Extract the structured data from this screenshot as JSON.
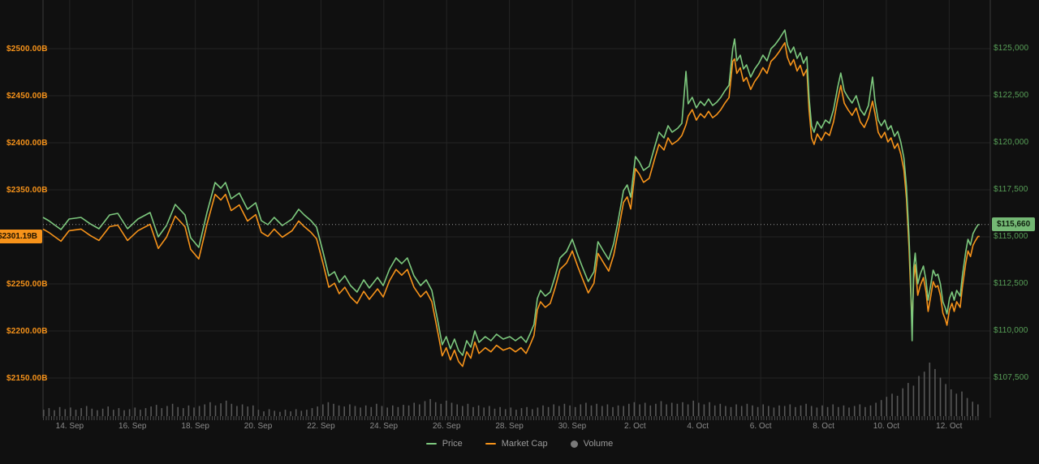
{
  "colors": {
    "background": "#101010",
    "grid": "#242424",
    "axis_line": "#3a3a3a",
    "price_line": "#7dc97e",
    "market_cap_line": "#f7931a",
    "volume_bar": "#585858",
    "muted_text": "#8c8c8c",
    "left_axis_text": "#f7931a",
    "right_axis_text": "#58a058",
    "price_badge_bg": "#74b874",
    "price_badge_text": "#0e1f0e",
    "market_cap_badge_bg": "#f7931a",
    "market_cap_badge_text": "#241500",
    "current_price_dotted_line": "#999999"
  },
  "legend": {
    "items": [
      {
        "label": "Price",
        "marker": "line",
        "color": "#7dc97e"
      },
      {
        "label": "Market Cap",
        "marker": "line",
        "color": "#f7931a"
      },
      {
        "label": "Volume",
        "marker": "dot",
        "color": "#7a7a7a"
      }
    ]
  },
  "chart_data": {
    "type": "line",
    "title": "",
    "legend_position": "bottom",
    "grid": true,
    "current": {
      "price": 115660,
      "price_label": "$115,660",
      "market_cap_b": 2301.19,
      "market_cap_label": "$2301.19B"
    },
    "price_axis": {
      "side": "right",
      "min": 105389,
      "max": 127586,
      "ticks": [
        {
          "v": 125000,
          "label": "$125,000"
        },
        {
          "v": 122500,
          "label": "$122,500"
        },
        {
          "v": 120000,
          "label": "$120,000"
        },
        {
          "v": 117500,
          "label": "$117,500"
        },
        {
          "v": 115000,
          "label": "$115,000"
        },
        {
          "v": 112500,
          "label": "$112,500"
        },
        {
          "v": 110000,
          "label": "$110,000"
        },
        {
          "v": 107500,
          "label": "$107,500"
        }
      ]
    },
    "mcap_axis": {
      "side": "left",
      "min": 2108.6,
      "max": 2552.6,
      "ticks": [
        {
          "v": 2500,
          "label": "$2500.00B"
        },
        {
          "v": 2450,
          "label": "$2450.00B"
        },
        {
          "v": 2400,
          "label": "$2400.00B"
        },
        {
          "v": 2350,
          "label": "$2350.00B"
        },
        {
          "v": 2250,
          "label": "$2250.00B"
        },
        {
          "v": 2200,
          "label": "$2200.00B"
        },
        {
          "v": 2150,
          "label": "$2150.00B"
        }
      ]
    },
    "time_axis": {
      "min": 0,
      "max": 30.16,
      "ticks": [
        {
          "t": 0.85,
          "label": "14. Sep"
        },
        {
          "t": 2.85,
          "label": "16. Sep"
        },
        {
          "t": 4.85,
          "label": "18. Sep"
        },
        {
          "t": 6.85,
          "label": "20. Sep"
        },
        {
          "t": 8.85,
          "label": "22. Sep"
        },
        {
          "t": 10.85,
          "label": "24. Sep"
        },
        {
          "t": 12.85,
          "label": "26. Sep"
        },
        {
          "t": 14.85,
          "label": "28. Sep"
        },
        {
          "t": 16.85,
          "label": "30. Sep"
        },
        {
          "t": 18.85,
          "label": "2. Oct"
        },
        {
          "t": 20.85,
          "label": "4. Oct"
        },
        {
          "t": 22.85,
          "label": "6. Oct"
        },
        {
          "t": 24.85,
          "label": "8. Oct"
        },
        {
          "t": 26.85,
          "label": "10. Oct"
        },
        {
          "t": 28.85,
          "label": "12. Oct"
        }
      ]
    },
    "series_names": [
      "Price",
      "Market Cap"
    ],
    "points_format": [
      "t_days_from_chart_start",
      "price_usd",
      "market_cap_billion_usd"
    ],
    "points": [
      [
        0,
        116034,
        2309.1
      ],
      [
        0.18,
        115862,
        2305.7
      ],
      [
        0.57,
        115388,
        2296.2
      ],
      [
        0.83,
        115948,
        2307.4
      ],
      [
        1.21,
        116034,
        2309.1
      ],
      [
        1.5,
        115700,
        2302.4
      ],
      [
        1.78,
        115431,
        2297.1
      ],
      [
        2.12,
        116164,
        2311.7
      ],
      [
        2.38,
        116250,
        2313.4
      ],
      [
        2.69,
        115431,
        2297.1
      ],
      [
        3.02,
        115948,
        2307.4
      ],
      [
        3.41,
        116293,
        2314.2
      ],
      [
        3.67,
        115000,
        2288.5
      ],
      [
        3.93,
        115603,
        2300.5
      ],
      [
        4.21,
        116724,
        2322.8
      ],
      [
        4.52,
        116164,
        2311.7
      ],
      [
        4.7,
        114957,
        2287.6
      ],
      [
        4.96,
        114440,
        2277.4
      ],
      [
        5.22,
        116293,
        2314.2
      ],
      [
        5.48,
        117888,
        2346.0
      ],
      [
        5.66,
        117586,
        2340.0
      ],
      [
        5.81,
        117888,
        2346.0
      ],
      [
        5.99,
        117026,
        2328.8
      ],
      [
        6.25,
        117328,
        2334.8
      ],
      [
        6.51,
        116466,
        2317.7
      ],
      [
        6.77,
        116810,
        2324.5
      ],
      [
        6.95,
        115862,
        2305.7
      ],
      [
        7.16,
        115647,
        2301.4
      ],
      [
        7.36,
        116034,
        2309.1
      ],
      [
        7.62,
        115603,
        2300.5
      ],
      [
        7.93,
        115948,
        2307.4
      ],
      [
        8.14,
        116466,
        2317.7
      ],
      [
        8.32,
        116164,
        2311.7
      ],
      [
        8.53,
        115862,
        2305.7
      ],
      [
        8.71,
        115517,
        2298.8
      ],
      [
        8.91,
        114224,
        2273.1
      ],
      [
        9.1,
        112931,
        2247.3
      ],
      [
        9.28,
        113147,
        2251.6
      ],
      [
        9.43,
        112586,
        2240.5
      ],
      [
        9.61,
        112931,
        2247.3
      ],
      [
        9.79,
        112414,
        2237.0
      ],
      [
        10.0,
        112069,
        2230.2
      ],
      [
        10.21,
        112716,
        2243.0
      ],
      [
        10.39,
        112284,
        2234.5
      ],
      [
        10.65,
        112845,
        2245.6
      ],
      [
        10.83,
        112414,
        2237.0
      ],
      [
        11.03,
        113276,
        2254.2
      ],
      [
        11.24,
        113879,
        2266.2
      ],
      [
        11.42,
        113578,
        2260.2
      ],
      [
        11.6,
        113879,
        2266.2
      ],
      [
        11.81,
        112931,
        2247.3
      ],
      [
        12.02,
        112414,
        2237.0
      ],
      [
        12.2,
        112716,
        2243.0
      ],
      [
        12.38,
        112155,
        2231.9
      ],
      [
        12.58,
        110431,
        2197.6
      ],
      [
        12.71,
        109267,
        2174.4
      ],
      [
        12.84,
        109698,
        2183.0
      ],
      [
        12.97,
        109052,
        2170.1
      ],
      [
        13.1,
        109569,
        2180.4
      ],
      [
        13.23,
        108966,
        2168.4
      ],
      [
        13.36,
        108707,
        2163.3
      ],
      [
        13.49,
        109483,
        2178.7
      ],
      [
        13.62,
        109138,
        2171.9
      ],
      [
        13.75,
        110000,
        2189.0
      ],
      [
        13.88,
        109397,
        2177.0
      ],
      [
        14.08,
        109698,
        2183.0
      ],
      [
        14.26,
        109483,
        2178.7
      ],
      [
        14.44,
        109828,
        2185.6
      ],
      [
        14.65,
        109569,
        2180.4
      ],
      [
        14.86,
        109698,
        2183.0
      ],
      [
        15.04,
        109483,
        2178.7
      ],
      [
        15.22,
        109698,
        2183.0
      ],
      [
        15.38,
        109397,
        2177.0
      ],
      [
        15.5,
        109828,
        2185.6
      ],
      [
        15.63,
        110345,
        2195.9
      ],
      [
        15.74,
        111724,
        2223.3
      ],
      [
        15.84,
        112155,
        2231.9
      ],
      [
        15.99,
        111853,
        2225.9
      ],
      [
        16.15,
        112069,
        2230.2
      ],
      [
        16.31,
        112931,
        2247.3
      ],
      [
        16.46,
        113879,
        2266.2
      ],
      [
        16.67,
        114224,
        2273.1
      ],
      [
        16.85,
        114871,
        2285.9
      ],
      [
        17.03,
        114009,
        2268.8
      ],
      [
        17.18,
        113362,
        2255.9
      ],
      [
        17.36,
        112629,
        2241.3
      ],
      [
        17.54,
        113147,
        2251.6
      ],
      [
        17.67,
        114741,
        2283.3
      ],
      [
        17.85,
        114224,
        2273.1
      ],
      [
        18.01,
        113793,
        2264.5
      ],
      [
        18.17,
        114655,
        2281.6
      ],
      [
        18.32,
        115948,
        2307.4
      ],
      [
        18.48,
        117457,
        2337.4
      ],
      [
        18.6,
        117759,
        2343.4
      ],
      [
        18.71,
        117112,
        2330.5
      ],
      [
        18.86,
        119267,
        2373.4
      ],
      [
        18.99,
        118966,
        2367.4
      ],
      [
        19.12,
        118534,
        2358.8
      ],
      [
        19.3,
        118750,
        2363.1
      ],
      [
        19.48,
        119828,
        2384.6
      ],
      [
        19.61,
        120560,
        2399.1
      ],
      [
        19.77,
        120259,
        2393.2
      ],
      [
        19.9,
        120905,
        2406.0
      ],
      [
        20.03,
        120560,
        2399.1
      ],
      [
        20.21,
        120776,
        2403.4
      ],
      [
        20.34,
        121034,
        2408.6
      ],
      [
        20.47,
        123793,
        2420.0
      ],
      [
        20.54,
        122069,
        2429.2
      ],
      [
        20.67,
        122414,
        2436.0
      ],
      [
        20.8,
        121853,
        2424.9
      ],
      [
        20.93,
        122198,
        2431.7
      ],
      [
        21.06,
        121983,
        2427.5
      ],
      [
        21.19,
        122328,
        2434.3
      ],
      [
        21.32,
        121983,
        2427.5
      ],
      [
        21.45,
        122155,
        2430.9
      ],
      [
        21.58,
        122414,
        2436.0
      ],
      [
        21.71,
        122759,
        2442.9
      ],
      [
        21.84,
        123060,
        2448.9
      ],
      [
        21.96,
        125000,
        2487.5
      ],
      [
        22.02,
        125517,
        2490.0
      ],
      [
        22.09,
        124353,
        2474.6
      ],
      [
        22.2,
        124655,
        2480.6
      ],
      [
        22.3,
        123922,
        2466.1
      ],
      [
        22.4,
        124138,
        2470.3
      ],
      [
        22.53,
        123491,
        2457.5
      ],
      [
        22.66,
        123922,
        2466.1
      ],
      [
        22.79,
        124224,
        2472.1
      ],
      [
        22.92,
        124655,
        2480.6
      ],
      [
        23.05,
        124353,
        2474.6
      ],
      [
        23.18,
        125000,
        2487.5
      ],
      [
        23.31,
        125216,
        2491.8
      ],
      [
        23.44,
        125517,
        2497.8
      ],
      [
        23.57,
        125862,
        2504.7
      ],
      [
        23.62,
        125991,
        2507.2
      ],
      [
        23.7,
        125216,
        2491.8
      ],
      [
        23.8,
        124784,
        2483.2
      ],
      [
        23.9,
        125086,
        2489.2
      ],
      [
        24.01,
        124483,
        2477.2
      ],
      [
        24.11,
        124784,
        2483.2
      ],
      [
        24.21,
        124224,
        2472.1
      ],
      [
        24.32,
        124569,
        2478.9
      ],
      [
        24.39,
        122414,
        2436.0
      ],
      [
        24.47,
        120905,
        2406.0
      ],
      [
        24.55,
        120560,
        2399.1
      ],
      [
        24.65,
        121121,
        2410.3
      ],
      [
        24.78,
        120776,
        2403.4
      ],
      [
        24.91,
        121207,
        2412.0
      ],
      [
        25.04,
        121034,
        2408.6
      ],
      [
        25.17,
        121767,
        2423.2
      ],
      [
        25.3,
        122931,
        2446.3
      ],
      [
        25.4,
        123707,
        2461.8
      ],
      [
        25.51,
        122759,
        2442.9
      ],
      [
        25.63,
        122414,
        2436.0
      ],
      [
        25.76,
        122112,
        2430.0
      ],
      [
        25.89,
        122500,
        2437.8
      ],
      [
        26.02,
        121767,
        2423.2
      ],
      [
        26.15,
        121466,
        2417.2
      ],
      [
        26.28,
        121983,
        2427.5
      ],
      [
        26.41,
        123491,
        2445.0
      ],
      [
        26.49,
        122198,
        2431.7
      ],
      [
        26.59,
        121207,
        2412.0
      ],
      [
        26.69,
        120905,
        2406.0
      ],
      [
        26.8,
        121207,
        2412.0
      ],
      [
        26.9,
        120690,
        2401.7
      ],
      [
        27.0,
        120905,
        2406.0
      ],
      [
        27.11,
        120345,
        2394.9
      ],
      [
        27.21,
        120603,
        2400.0
      ],
      [
        27.31,
        120043,
        2388.9
      ],
      [
        27.41,
        119181,
        2371.7
      ],
      [
        27.49,
        117672,
        2341.7
      ],
      [
        27.57,
        115086,
        2290.2
      ],
      [
        27.62,
        112931,
        2247.3
      ],
      [
        27.67,
        109483,
        2208.0
      ],
      [
        27.72,
        113362,
        2255.9
      ],
      [
        27.77,
        114138,
        2271.3
      ],
      [
        27.85,
        112500,
        2238.8
      ],
      [
        27.93,
        113017,
        2249.0
      ],
      [
        28.03,
        113448,
        2257.6
      ],
      [
        28.11,
        112716,
        2243.0
      ],
      [
        28.18,
        111638,
        2221.6
      ],
      [
        28.26,
        112414,
        2237.0
      ],
      [
        28.34,
        113233,
        2253.3
      ],
      [
        28.42,
        112931,
        2247.3
      ],
      [
        28.49,
        113017,
        2249.0
      ],
      [
        28.57,
        112500,
        2238.8
      ],
      [
        28.65,
        111552,
        2219.9
      ],
      [
        28.73,
        111207,
        2213.0
      ],
      [
        28.78,
        110905,
        2207.0
      ],
      [
        28.86,
        111724,
        2223.3
      ],
      [
        28.94,
        112069,
        2230.2
      ],
      [
        29.01,
        111638,
        2221.6
      ],
      [
        29.09,
        112155,
        2231.9
      ],
      [
        29.2,
        111853,
        2225.9
      ],
      [
        29.27,
        112931,
        2247.3
      ],
      [
        29.38,
        114224,
        2273.1
      ],
      [
        29.45,
        114871,
        2285.9
      ],
      [
        29.53,
        114569,
        2279.9
      ],
      [
        29.61,
        115172,
        2291.9
      ],
      [
        29.69,
        115431,
        2297.1
      ],
      [
        29.77,
        115647,
        2301.4
      ],
      [
        29.82,
        115660,
        2301.19
      ]
    ],
    "volume": {
      "name": "Volume",
      "relative_values": [
        0.12,
        0.15,
        0.11,
        0.17,
        0.13,
        0.16,
        0.12,
        0.15,
        0.19,
        0.14,
        0.11,
        0.14,
        0.18,
        0.12,
        0.15,
        0.11,
        0.13,
        0.16,
        0.12,
        0.15,
        0.18,
        0.21,
        0.15,
        0.19,
        0.23,
        0.17,
        0.15,
        0.2,
        0.16,
        0.19,
        0.22,
        0.26,
        0.2,
        0.24,
        0.29,
        0.23,
        0.19,
        0.22,
        0.18,
        0.2,
        0.12,
        0.09,
        0.13,
        0.1,
        0.08,
        0.12,
        0.09,
        0.13,
        0.1,
        0.12,
        0.15,
        0.18,
        0.22,
        0.26,
        0.23,
        0.2,
        0.18,
        0.22,
        0.19,
        0.16,
        0.2,
        0.17,
        0.23,
        0.19,
        0.16,
        0.2,
        0.17,
        0.21,
        0.2,
        0.25,
        0.22,
        0.28,
        0.32,
        0.26,
        0.23,
        0.29,
        0.25,
        0.22,
        0.19,
        0.23,
        0.17,
        0.2,
        0.16,
        0.19,
        0.14,
        0.17,
        0.13,
        0.16,
        0.12,
        0.15,
        0.17,
        0.13,
        0.16,
        0.2,
        0.17,
        0.22,
        0.19,
        0.23,
        0.2,
        0.17,
        0.22,
        0.25,
        0.2,
        0.23,
        0.19,
        0.22,
        0.17,
        0.2,
        0.19,
        0.23,
        0.26,
        0.22,
        0.25,
        0.2,
        0.23,
        0.28,
        0.22,
        0.25,
        0.23,
        0.26,
        0.22,
        0.29,
        0.25,
        0.22,
        0.26,
        0.2,
        0.23,
        0.19,
        0.17,
        0.22,
        0.19,
        0.23,
        0.2,
        0.17,
        0.22,
        0.19,
        0.16,
        0.2,
        0.19,
        0.22,
        0.17,
        0.2,
        0.23,
        0.19,
        0.16,
        0.2,
        0.17,
        0.22,
        0.17,
        0.2,
        0.16,
        0.19,
        0.22,
        0.17,
        0.2,
        0.25,
        0.3,
        0.36,
        0.42,
        0.38,
        0.52,
        0.62,
        0.57,
        0.75,
        0.83,
        1.0,
        0.88,
        0.72,
        0.6,
        0.5,
        0.42,
        0.46,
        0.34,
        0.27,
        0.22
      ]
    }
  }
}
